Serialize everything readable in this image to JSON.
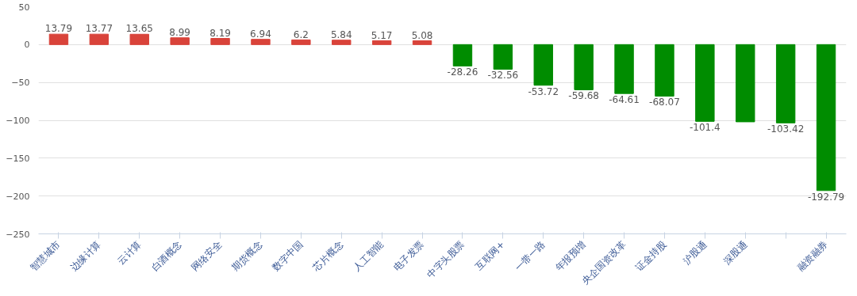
{
  "chart_data": {
    "type": "bar",
    "categories": [
      "智慧城市",
      "边缘计算",
      "云计算",
      "白酒概念",
      "网络安全",
      "期货概念",
      "数字中国",
      "芯片概念",
      "人工智能",
      "电子发票",
      "中字头股票",
      "互联网+",
      "一带一路",
      "年报预增",
      "央企国资改革",
      "证金持股",
      "沪股通",
      "深股通",
      null,
      "融资融券"
    ],
    "values": [
      13.79,
      13.77,
      13.65,
      8.99,
      8.19,
      6.94,
      6.2,
      5.84,
      5.17,
      5.08,
      -28.26,
      -32.56,
      -53.72,
      -59.68,
      -64.61,
      -68.07,
      -101.4,
      -102,
      -103.42,
      -192.79
    ],
    "colors": [
      "#d9433a",
      "#d9433a",
      "#d9433a",
      "#d9433a",
      "#d9433a",
      "#d9433a",
      "#d9433a",
      "#d9433a",
      "#d9433a",
      "#d9433a",
      "#008c00",
      "#008c00",
      "#008c00",
      "#008c00",
      "#008c00",
      "#008c00",
      "#008c00",
      "#008c00",
      "#008c00",
      "#008c00"
    ],
    "value_labels": [
      "13.79",
      "13.77",
      "13.65",
      "8.99",
      "8.19",
      "6.94",
      "6.2",
      "5.84",
      "5.17",
      "5.08",
      "-28.26",
      "-32.56",
      "-53.72",
      "-59.68",
      "-64.61",
      "-68.07",
      "-101.4",
      null,
      "-103.42",
      "-192.79"
    ],
    "ylim": [
      -250,
      50
    ],
    "yticks": [
      -250,
      -200,
      -150,
      -100,
      -50,
      0,
      50
    ],
    "grid": "y"
  }
}
